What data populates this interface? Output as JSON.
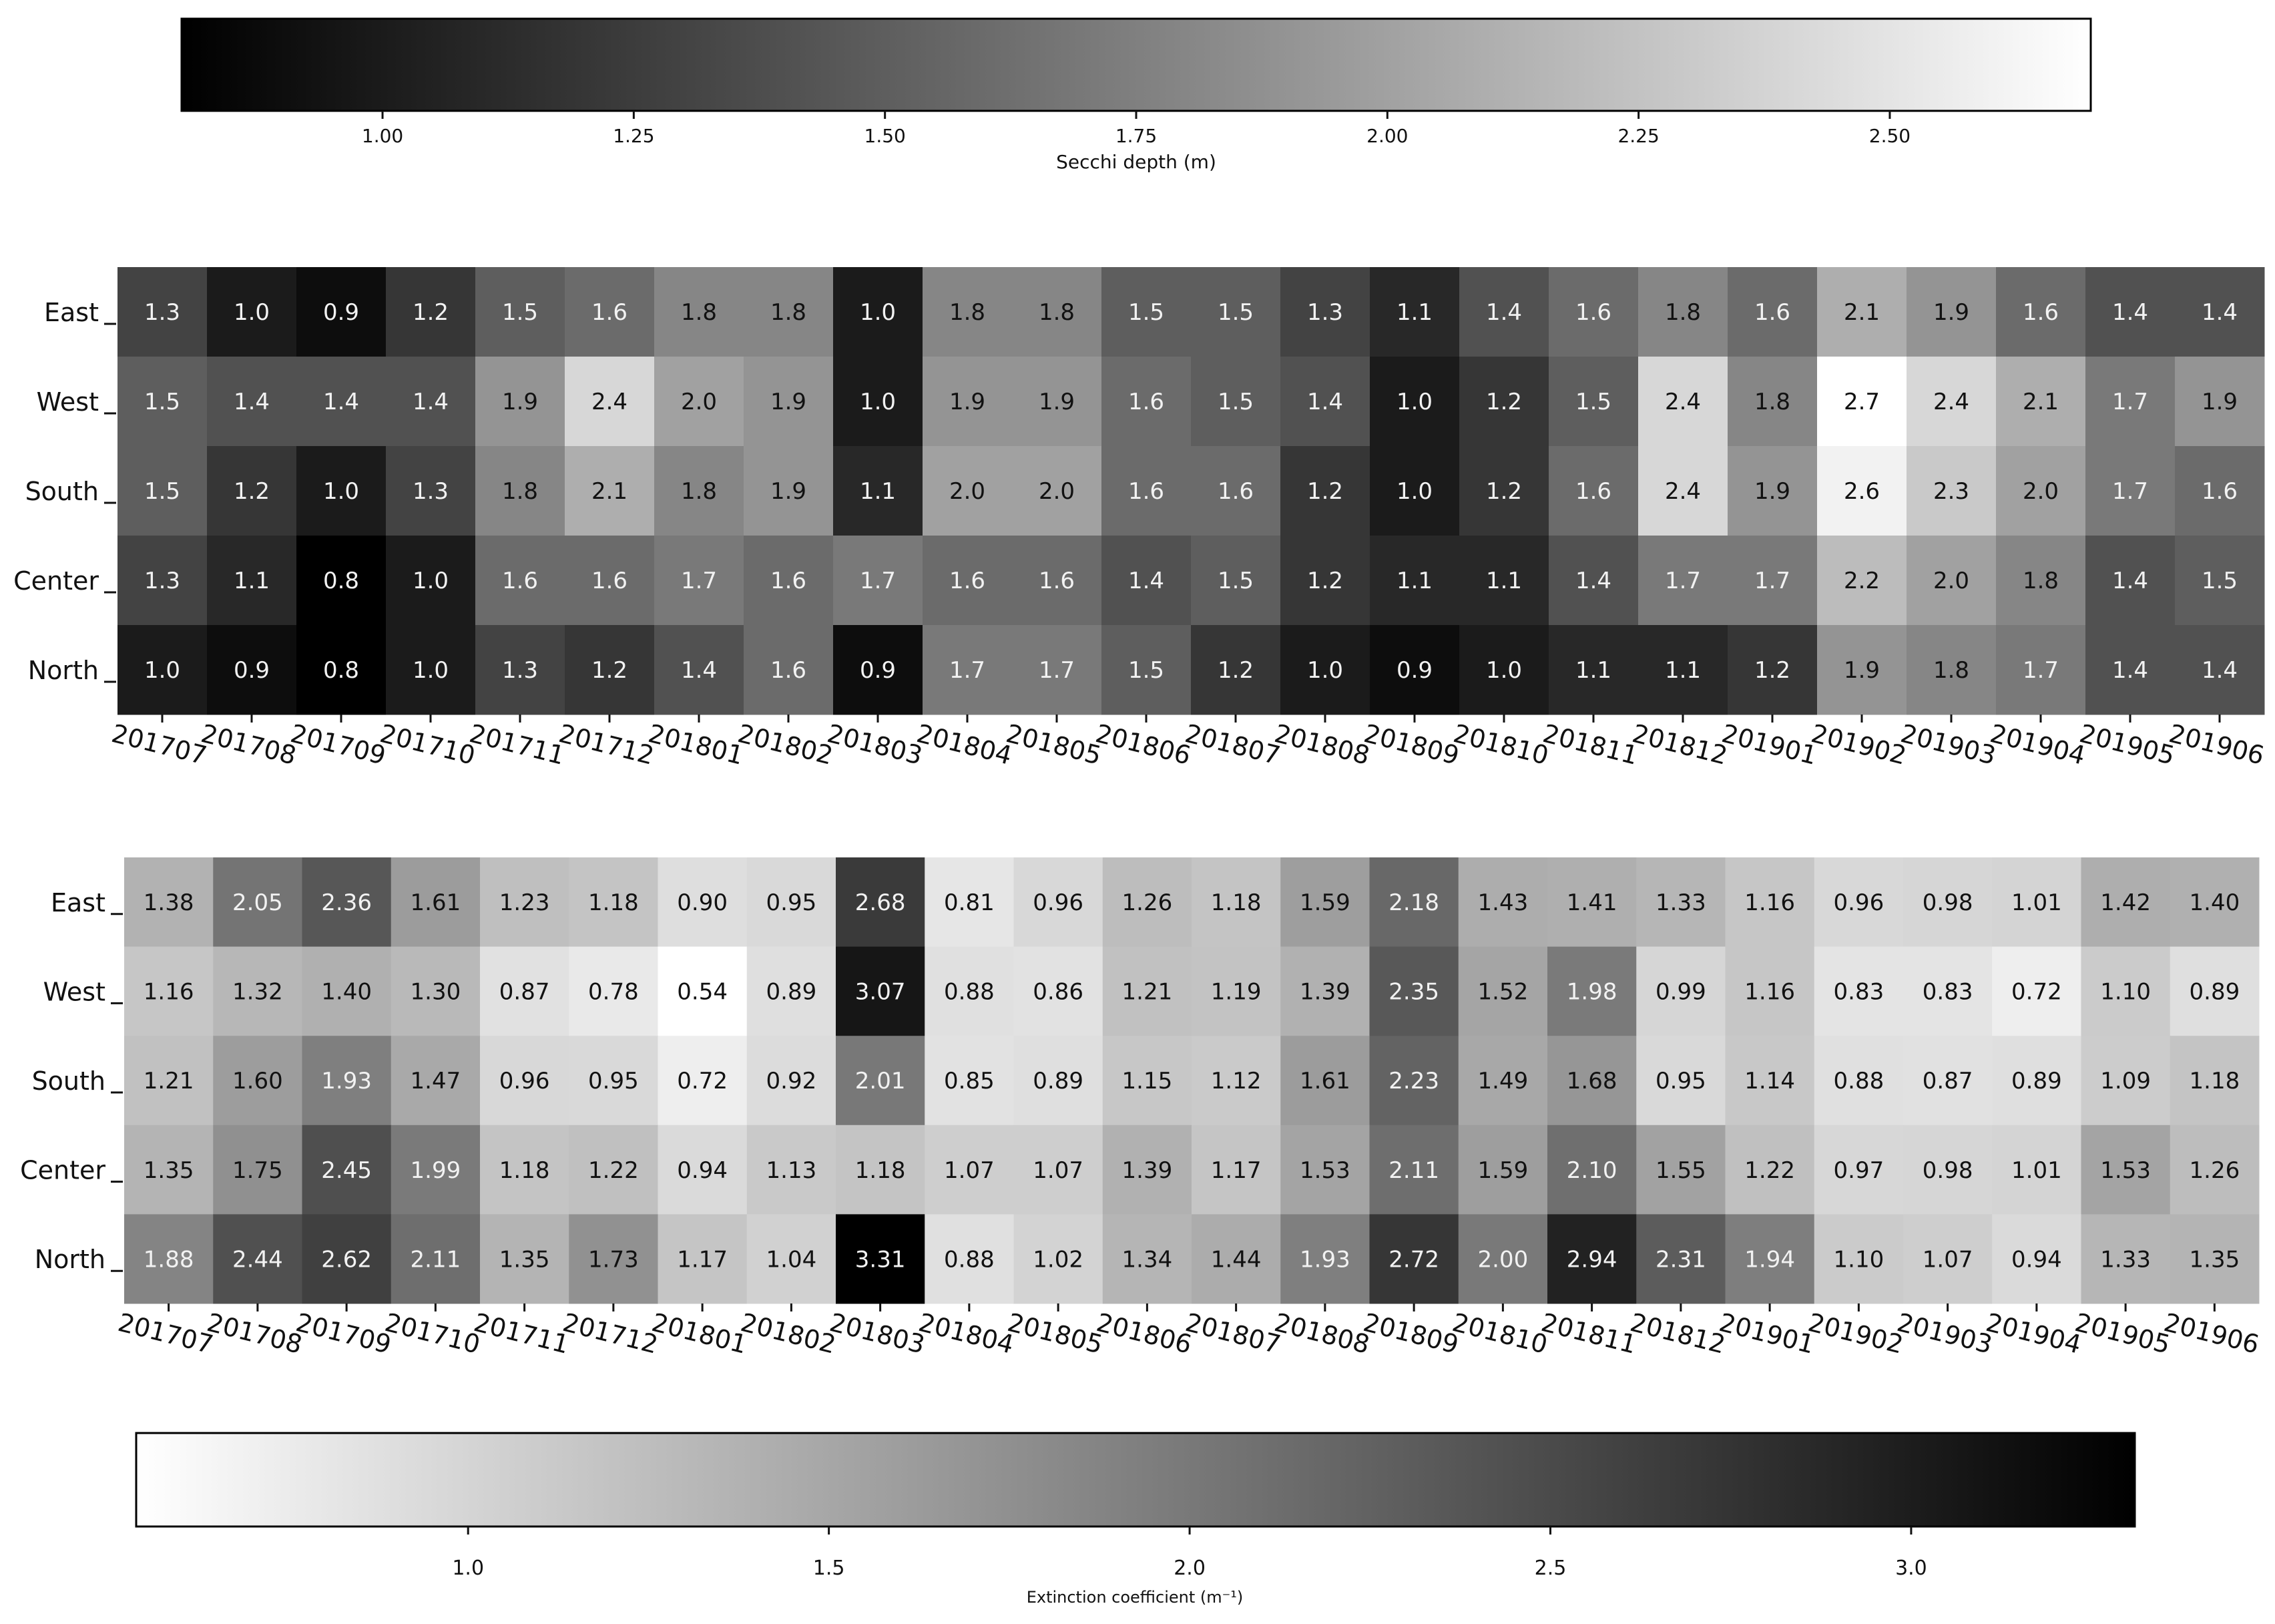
{
  "chart_data": [
    {
      "type": "heatmap",
      "rows": [
        "East",
        "West",
        "South",
        "Center",
        "North"
      ],
      "columns": [
        "201707",
        "201708",
        "201709",
        "201710",
        "201711",
        "201712",
        "201801",
        "201802",
        "201803",
        "201804",
        "201805",
        "201806",
        "201807",
        "201808",
        "201809",
        "201810",
        "201811",
        "201812",
        "201901",
        "201902",
        "201903",
        "201904",
        "201905",
        "201906"
      ],
      "values": [
        [
          "1.3",
          "1.0",
          "0.9",
          "1.2",
          "1.5",
          "1.6",
          "1.8",
          "1.8",
          "1.0",
          "1.8",
          "1.8",
          "1.5",
          "1.5",
          "1.3",
          "1.1",
          "1.4",
          "1.6",
          "1.8",
          "1.6",
          "2.1",
          "1.9",
          "1.6",
          "1.4",
          "1.4"
        ],
        [
          "1.5",
          "1.4",
          "1.4",
          "1.4",
          "1.9",
          "2.4",
          "2.0",
          "1.9",
          "1.0",
          "1.9",
          "1.9",
          "1.6",
          "1.5",
          "1.4",
          "1.0",
          "1.2",
          "1.5",
          "2.4",
          "1.8",
          "2.7",
          "2.4",
          "2.1",
          "1.7",
          "1.9"
        ],
        [
          "1.5",
          "1.2",
          "1.0",
          "1.3",
          "1.8",
          "2.1",
          "1.8",
          "1.9",
          "1.1",
          "2.0",
          "2.0",
          "1.6",
          "1.6",
          "1.2",
          "1.0",
          "1.2",
          "1.6",
          "2.4",
          "1.9",
          "2.6",
          "2.3",
          "2.0",
          "1.7",
          "1.6"
        ],
        [
          "1.3",
          "1.1",
          "0.8",
          "1.0",
          "1.6",
          "1.6",
          "1.7",
          "1.6",
          "1.7",
          "1.6",
          "1.6",
          "1.4",
          "1.5",
          "1.2",
          "1.1",
          "1.1",
          "1.4",
          "1.7",
          "1.7",
          "2.2",
          "2.0",
          "1.8",
          "1.4",
          "1.5"
        ],
        [
          "1.0",
          "0.9",
          "0.8",
          "1.0",
          "1.3",
          "1.2",
          "1.4",
          "1.6",
          "0.9",
          "1.7",
          "1.7",
          "1.5",
          "1.2",
          "1.0",
          "0.9",
          "1.0",
          "1.1",
          "1.1",
          "1.2",
          "1.9",
          "1.8",
          "1.7",
          "1.4",
          "1.4"
        ]
      ],
      "colormap": "gray (low = #000000, high = #ffffff)",
      "colorbar": {
        "label": "Secchi depth (m)",
        "range": [
          0.8,
          2.7
        ],
        "ticks": [
          "1.00",
          "1.25",
          "1.50",
          "1.75",
          "2.00",
          "2.25",
          "2.50"
        ],
        "placement": "top"
      }
    },
    {
      "type": "heatmap",
      "rows": [
        "East",
        "West",
        "South",
        "Center",
        "North"
      ],
      "columns": [
        "201707",
        "201708",
        "201709",
        "201710",
        "201711",
        "201712",
        "201801",
        "201802",
        "201803",
        "201804",
        "201805",
        "201806",
        "201807",
        "201808",
        "201809",
        "201810",
        "201811",
        "201812",
        "201901",
        "201902",
        "201903",
        "201904",
        "201905",
        "201906"
      ],
      "values": [
        [
          "1.38",
          "2.05",
          "2.36",
          "1.61",
          "1.23",
          "1.18",
          "0.90",
          "0.95",
          "2.68",
          "0.81",
          "0.96",
          "1.26",
          "1.18",
          "1.59",
          "2.18",
          "1.43",
          "1.41",
          "1.33",
          "1.16",
          "0.96",
          "0.98",
          "1.01",
          "1.42",
          "1.40"
        ],
        [
          "1.16",
          "1.32",
          "1.40",
          "1.30",
          "0.87",
          "0.78",
          "0.54",
          "0.89",
          "3.07",
          "0.88",
          "0.86",
          "1.21",
          "1.19",
          "1.39",
          "2.35",
          "1.52",
          "1.98",
          "0.99",
          "1.16",
          "0.83",
          "0.83",
          "0.72",
          "1.10",
          "0.89"
        ],
        [
          "1.21",
          "1.60",
          "1.93",
          "1.47",
          "0.96",
          "0.95",
          "0.72",
          "0.92",
          "2.01",
          "0.85",
          "0.89",
          "1.15",
          "1.12",
          "1.61",
          "2.23",
          "1.49",
          "1.68",
          "0.95",
          "1.14",
          "0.88",
          "0.87",
          "0.89",
          "1.09",
          "1.18"
        ],
        [
          "1.35",
          "1.75",
          "2.45",
          "1.99",
          "1.18",
          "1.22",
          "0.94",
          "1.13",
          "1.18",
          "1.07",
          "1.07",
          "1.39",
          "1.17",
          "1.53",
          "2.11",
          "1.59",
          "2.10",
          "1.55",
          "1.22",
          "0.97",
          "0.98",
          "1.01",
          "1.53",
          "1.26"
        ],
        [
          "1.88",
          "2.44",
          "2.62",
          "2.11",
          "1.35",
          "1.73",
          "1.17",
          "1.04",
          "3.31",
          "0.88",
          "1.02",
          "1.34",
          "1.44",
          "1.93",
          "2.72",
          "2.00",
          "2.94",
          "2.31",
          "1.94",
          "1.10",
          "1.07",
          "0.94",
          "1.33",
          "1.35"
        ]
      ],
      "colormap": "gray reversed (low = #ffffff, high = #000000)",
      "colorbar": {
        "label": "Extinction coefficient (m⁻¹)",
        "range": [
          0.54,
          3.31
        ],
        "ticks": [
          "1.0",
          "1.5",
          "2.0",
          "2.5",
          "3.0"
        ],
        "placement": "bottom"
      }
    }
  ]
}
